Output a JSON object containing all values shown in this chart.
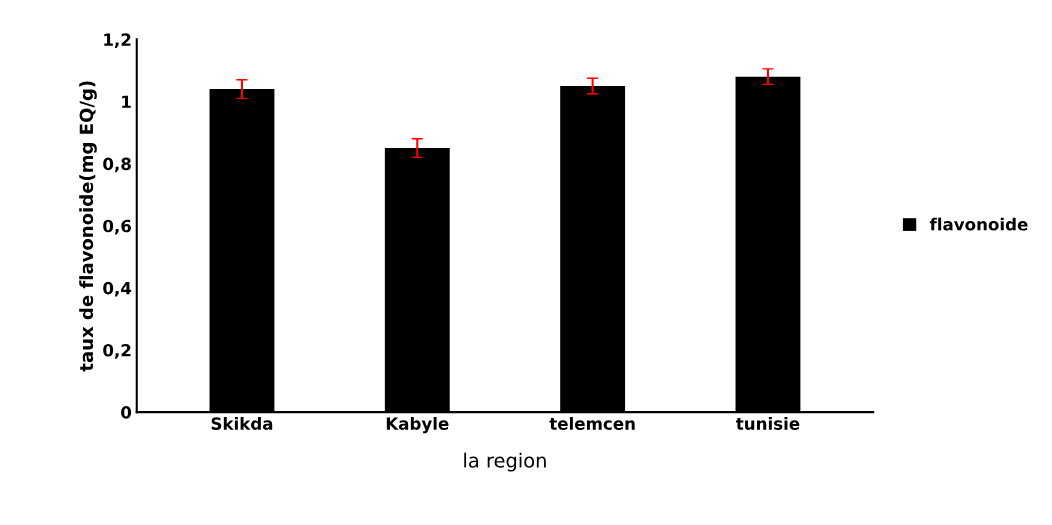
{
  "chart_data": {
    "type": "bar",
    "xlabel": "la region",
    "ylabel": "taux de flavonoide(mg EQ/g)",
    "categories": [
      "Skikda",
      "Kabyle",
      "telemcen",
      "tunisie"
    ],
    "series": [
      {
        "name": "flavonoide",
        "color": "#000000",
        "values": [
          1.04,
          0.85,
          1.05,
          1.08
        ],
        "errors": [
          0.03,
          0.03,
          0.025,
          0.025
        ]
      }
    ],
    "ylim": [
      0,
      1.2
    ],
    "yticks": [
      0,
      {
        "value": 0.2,
        "label": "0,2"
      },
      {
        "value": 0.4,
        "label": "0,4"
      },
      {
        "value": 0.6,
        "label": "0,6"
      },
      {
        "value": 0.8,
        "label": "0,8"
      },
      1,
      {
        "value": 1.2,
        "label": "1,2"
      }
    ],
    "grid": false,
    "legend": "right"
  }
}
